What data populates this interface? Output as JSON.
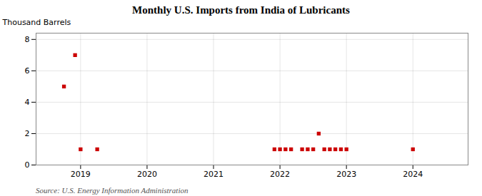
{
  "chart_data": {
    "type": "scatter",
    "title": "Monthly U.S. Imports from India of Lubricants",
    "ylabel": "Thousand Barrels",
    "source": "Source: U.S. Energy Information Administration",
    "x": [
      2018.75,
      2018.917,
      2019.0,
      2019.25,
      2021.917,
      2022.0,
      2022.083,
      2022.167,
      2022.333,
      2022.417,
      2022.5,
      2022.583,
      2022.667,
      2022.75,
      2022.833,
      2022.917,
      2023.0,
      2024.0
    ],
    "values": [
      5,
      7,
      1,
      1,
      1,
      1,
      1,
      1,
      1,
      1,
      1,
      2,
      1,
      1,
      1,
      1,
      1,
      1
    ],
    "color": "#cc0000",
    "marker": "square",
    "xlim": [
      2018.33,
      2024.83
    ],
    "xticks": [
      2019,
      2020,
      2021,
      2022,
      2023,
      2024
    ],
    "ylim": [
      0,
      8.4
    ],
    "yticks": [
      0,
      2,
      4,
      6,
      8
    ],
    "grid": true
  }
}
